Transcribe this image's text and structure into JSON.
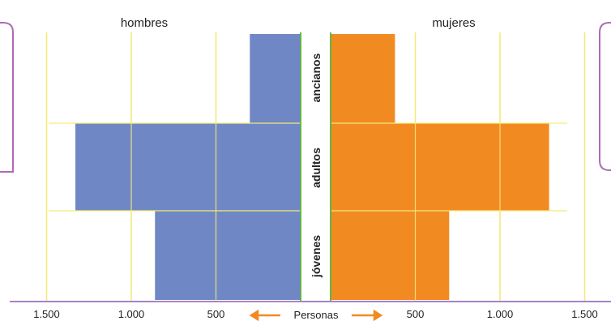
{
  "chart_data": {
    "type": "bar",
    "subtype": "population-pyramid",
    "categories": [
      "ancianos",
      "adultos",
      "jóvenes"
    ],
    "series": [
      {
        "name": "hombres",
        "values": [
          300,
          1330,
          860
        ],
        "color": "#6f87c4"
      },
      {
        "name": "mujeres",
        "values": [
          380,
          1290,
          700
        ],
        "color": "#f28a22"
      }
    ],
    "xlabel": "Personas",
    "tick_values": [
      500,
      1000,
      1500
    ],
    "tick_labels": [
      "500",
      "1.000",
      "1.500"
    ],
    "xlim": [
      0,
      1500
    ],
    "grid": true,
    "colors": {
      "grid": "#f3e97a",
      "divider": "#63b546",
      "axis": "#a782c7",
      "arrow": "#f28a22",
      "frame": "#b069b8"
    }
  }
}
